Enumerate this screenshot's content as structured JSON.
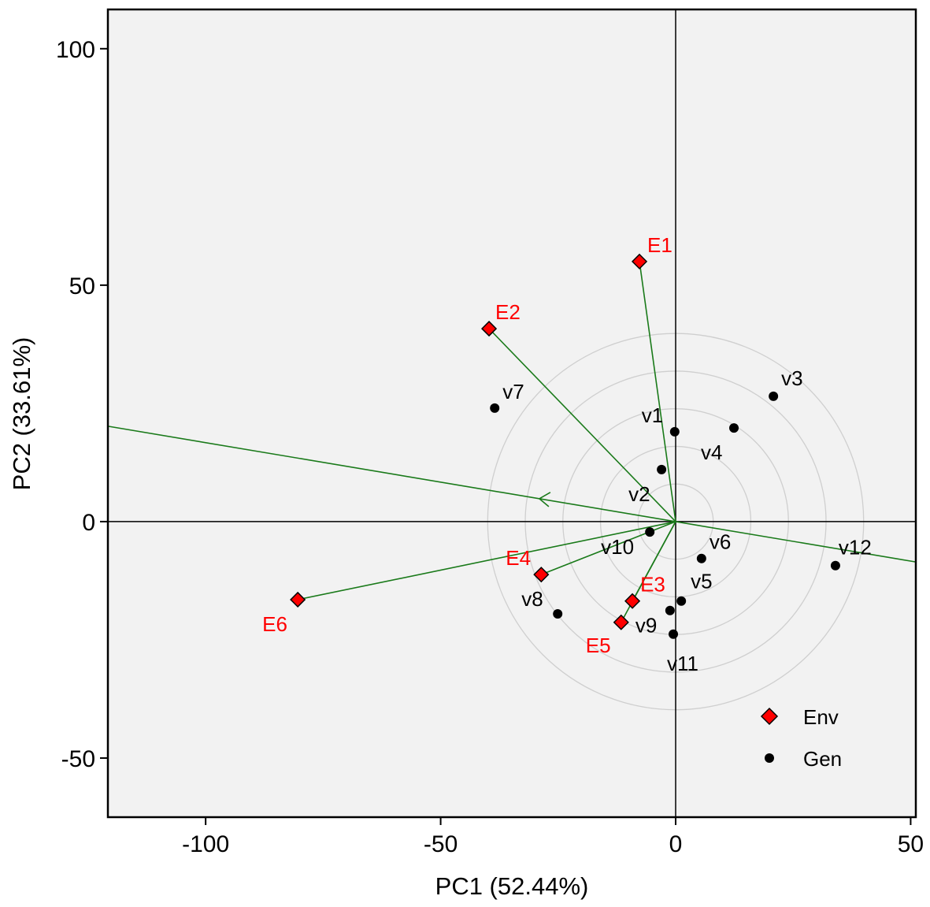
{
  "chart_data": {
    "type": "scatter",
    "subtype": "GGE biplot",
    "xlabel": "PC1 (52.44%)",
    "ylabel": "PC2 (33.61%)",
    "xlim": [
      -120.8,
      51.1
    ],
    "ylim": [
      -62.5,
      108.3
    ],
    "xticks": [
      -100,
      -50,
      0,
      50
    ],
    "yticks": [
      -50,
      0,
      50,
      100
    ],
    "grid": false,
    "legend": {
      "placement": "bottom-right",
      "entries": [
        {
          "label": "Env",
          "marker": "diamond",
          "color": "#ff0000"
        },
        {
          "label": "Gen",
          "marker": "circle",
          "color": "#000000"
        }
      ]
    },
    "colors": {
      "env": "#ff0000",
      "gen": "#000000",
      "vector": "#1a7a1a",
      "circle": "#cfcfcf",
      "background": "#f2f2f2"
    },
    "environments": [
      {
        "label": "E1",
        "x": -7.7,
        "y": 55.0
      },
      {
        "label": "E2",
        "x": -39.7,
        "y": 40.8
      },
      {
        "label": "E3",
        "x": -9.2,
        "y": -16.8
      },
      {
        "label": "E4",
        "x": -28.6,
        "y": -11.2
      },
      {
        "label": "E5",
        "x": -11.6,
        "y": -21.3
      },
      {
        "label": "E6",
        "x": -80.4,
        "y": -16.5
      }
    ],
    "genotypes": [
      {
        "label": "v1",
        "x": -0.2,
        "y": 19.0
      },
      {
        "label": "v2",
        "x": -3.0,
        "y": 11.0
      },
      {
        "label": "v3",
        "x": 20.8,
        "y": 26.5
      },
      {
        "label": "v4",
        "x": 12.4,
        "y": 19.8
      },
      {
        "label": "v5",
        "x": 1.2,
        "y": -16.8
      },
      {
        "label": "v6",
        "x": 5.5,
        "y": -7.8
      },
      {
        "label": "v7",
        "x": -38.5,
        "y": 24.0
      },
      {
        "label": "v8",
        "x": -25.1,
        "y": -19.5
      },
      {
        "label": "v9",
        "x": -1.2,
        "y": -18.8
      },
      {
        "label": "v10",
        "x": -5.5,
        "y": -2.2
      },
      {
        "label": "v11",
        "x": -0.5,
        "y": -23.8
      },
      {
        "label": "v12",
        "x": 34.0,
        "y": -9.3
      }
    ],
    "average_environment_axis": {
      "slope": -0.167,
      "arrow_direction": "left"
    },
    "concentric_circle_radii": [
      8,
      16,
      24,
      32,
      40
    ]
  }
}
